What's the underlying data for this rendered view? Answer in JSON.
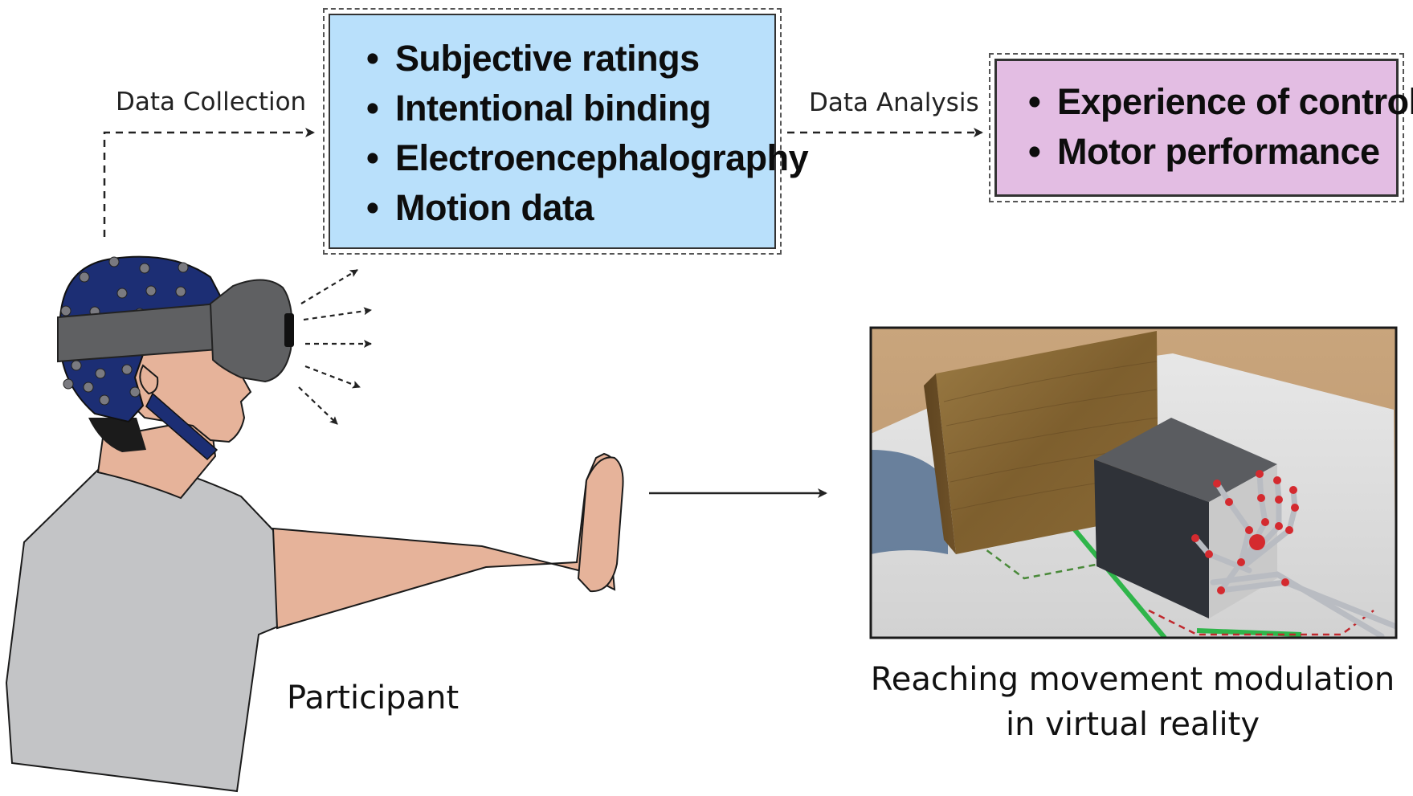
{
  "flow": {
    "collection_label": "Data Collection",
    "analysis_label": "Data Analysis"
  },
  "data_box": {
    "items": [
      "Subjective ratings",
      "Intentional binding",
      "Electroencephalography",
      "Motion data"
    ],
    "fill_color": "#b9e0fb"
  },
  "outcome_box": {
    "items": [
      "Experience of control",
      "Motor performance"
    ],
    "fill_color": "#e3bde3"
  },
  "participant": {
    "label": "Participant",
    "cap_color": "#1c2e74",
    "headset_color": "#5f6062",
    "skin_color": "#e6b39a",
    "shirt_color": "#c3c4c6"
  },
  "vr_scene": {
    "caption_line1": "Reaching movement modulation",
    "caption_line2": "in virtual reality"
  }
}
